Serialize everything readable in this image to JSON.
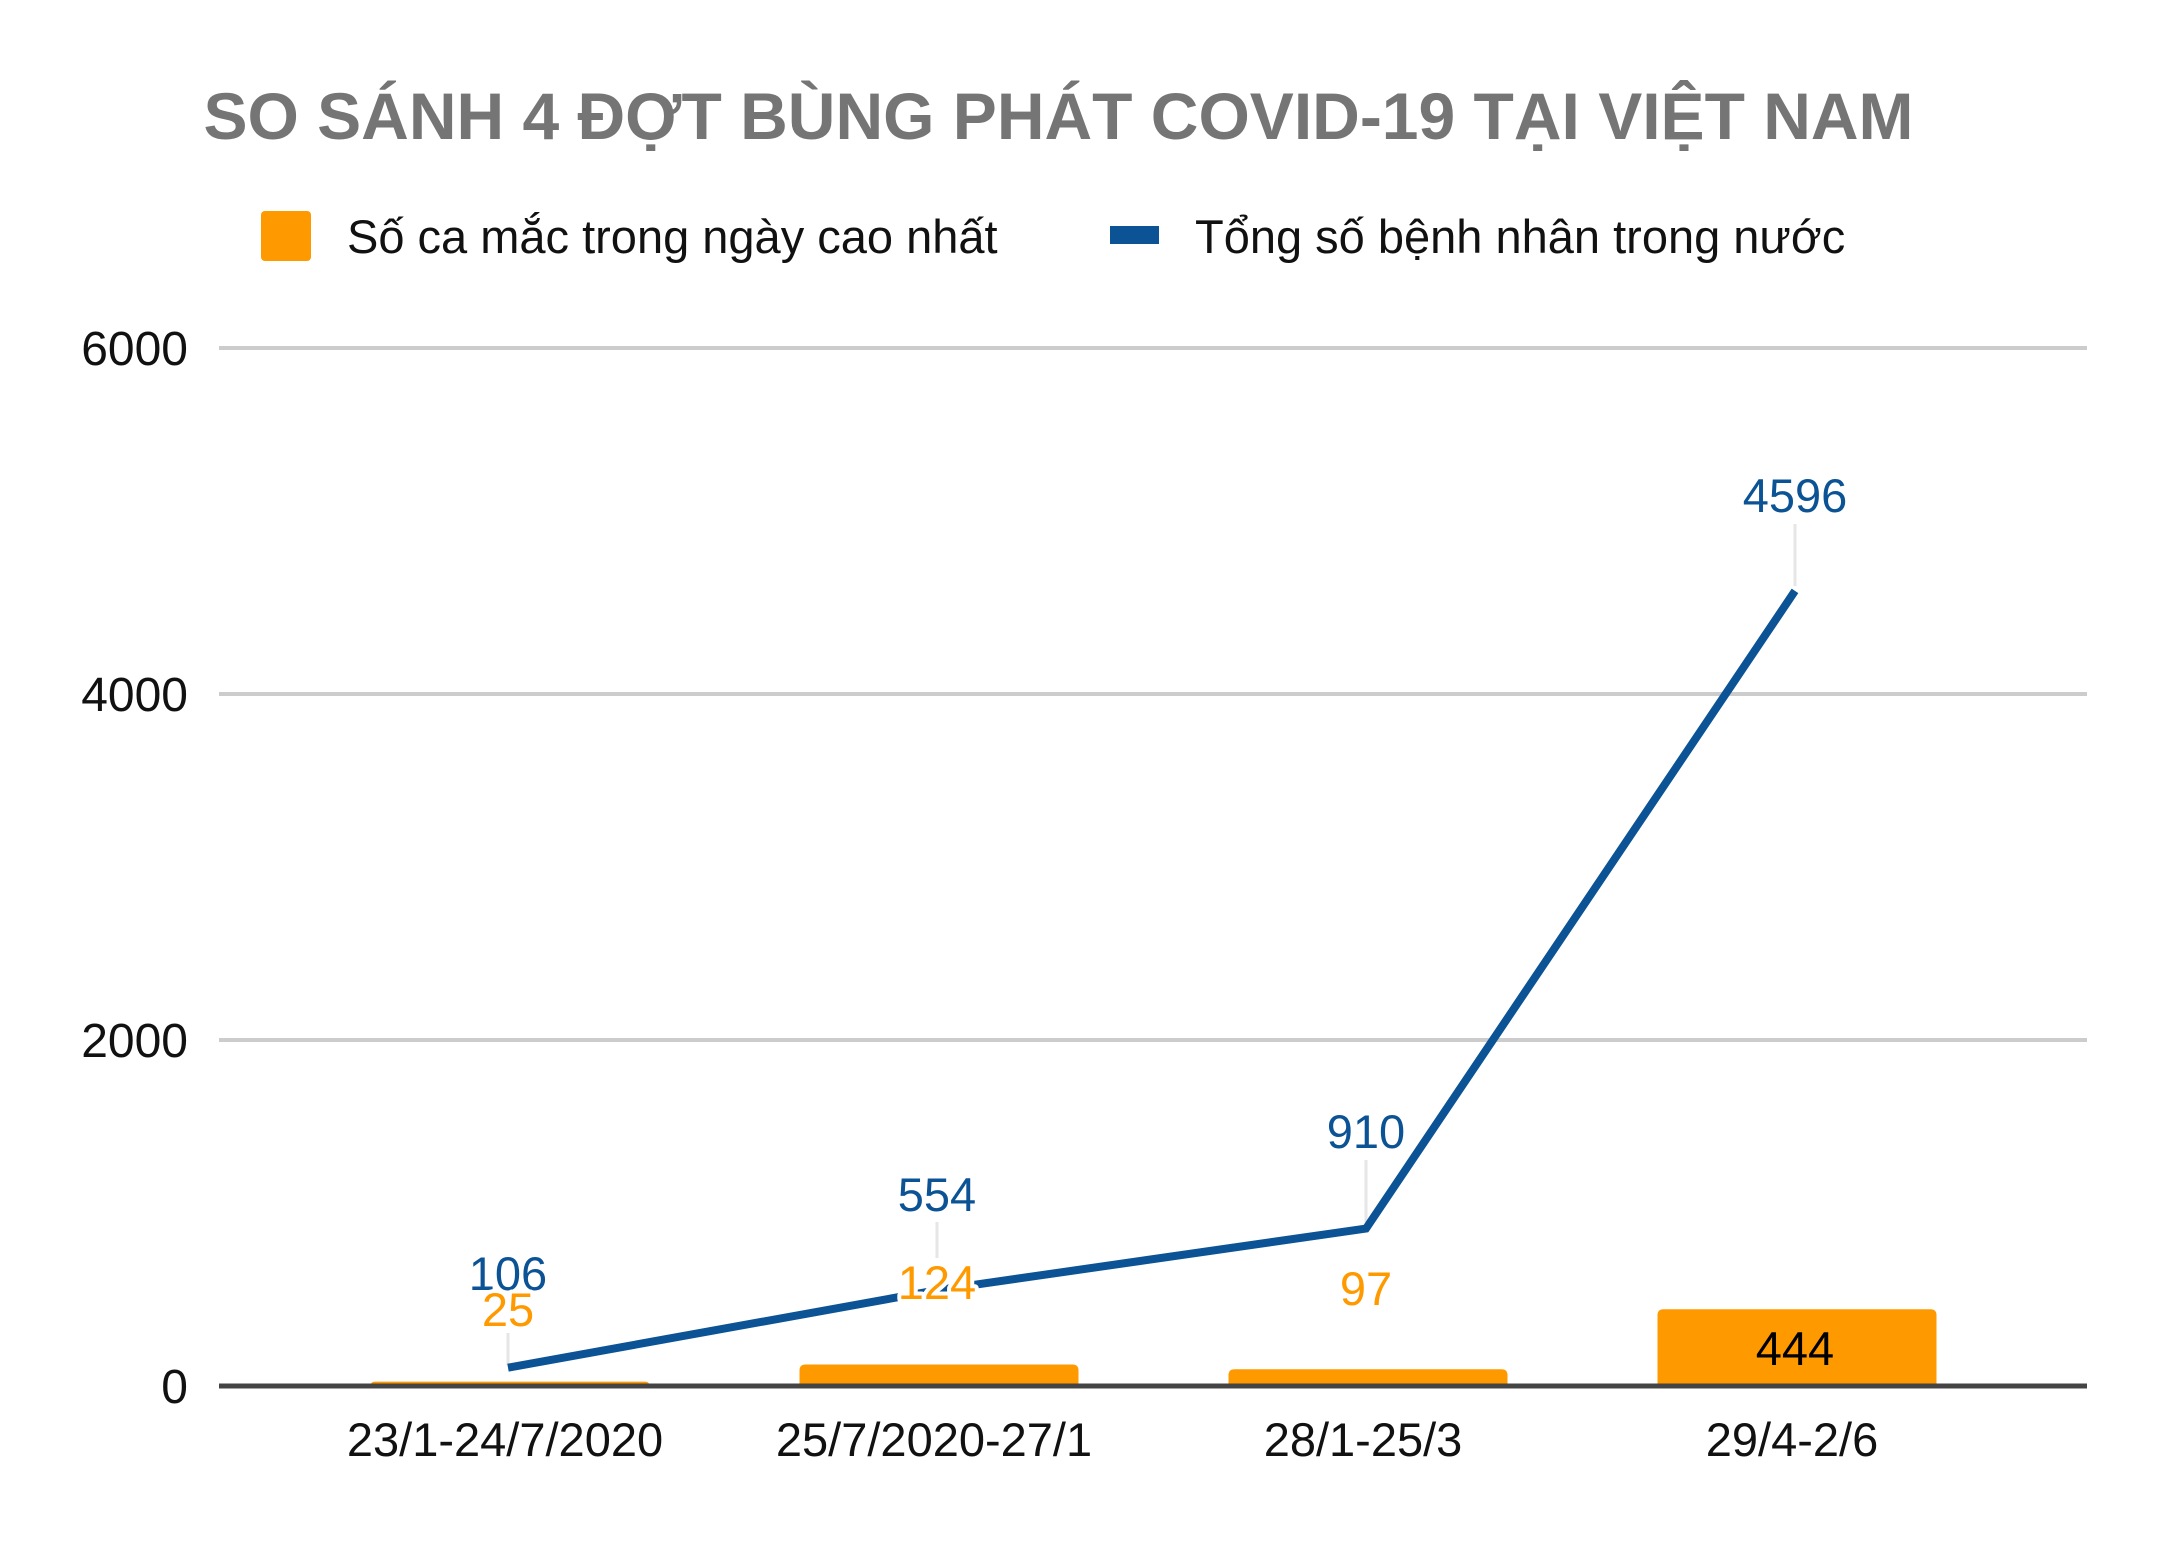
{
  "chart_data": {
    "type": "bar+line",
    "title": "SO SÁNH 4 ĐỢT BÙNG PHÁT COVID-19 TẠI VIỆT NAM",
    "categories": [
      "23/1-24/7/2020",
      "25/7/2020-27/1",
      "28/1-25/3",
      "29/4-2/6"
    ],
    "series": [
      {
        "name": "Số ca mắc trong ngày cao nhất",
        "type": "bar",
        "color": "#ff9900",
        "values": [
          25,
          124,
          97,
          444
        ],
        "data_labels": [
          "25",
          "124",
          "97",
          "444"
        ]
      },
      {
        "name": "Tổng số bệnh nhân trong nước",
        "type": "line",
        "color": "#0b5394",
        "values": [
          106,
          554,
          910,
          4596
        ],
        "data_labels": [
          "106",
          "554",
          "910",
          "4596"
        ]
      }
    ],
    "xlabel": "",
    "ylabel": "",
    "ylim": [
      0,
      6000
    ],
    "yticks": [
      0,
      2000,
      4000,
      6000
    ],
    "grid": true,
    "legend_position": "top"
  },
  "header": {
    "title": "SO SÁNH 4 ĐỢT BÙNG PHÁT COVID-19 TẠI VIỆT NAM"
  },
  "legend": {
    "items": [
      {
        "label": "Số ca mắc trong ngày cao nhất",
        "color": "#ff9900",
        "icon": "square-swatch"
      },
      {
        "label": "Tổng số bệnh nhân trong nước",
        "color": "#0b5394",
        "icon": "line-swatch"
      }
    ]
  },
  "colors": {
    "title": "#757575",
    "bar": "#ff9900",
    "line": "#0b5394",
    "grid": "#cccccc",
    "axis": "#444444",
    "text": "#111111"
  }
}
